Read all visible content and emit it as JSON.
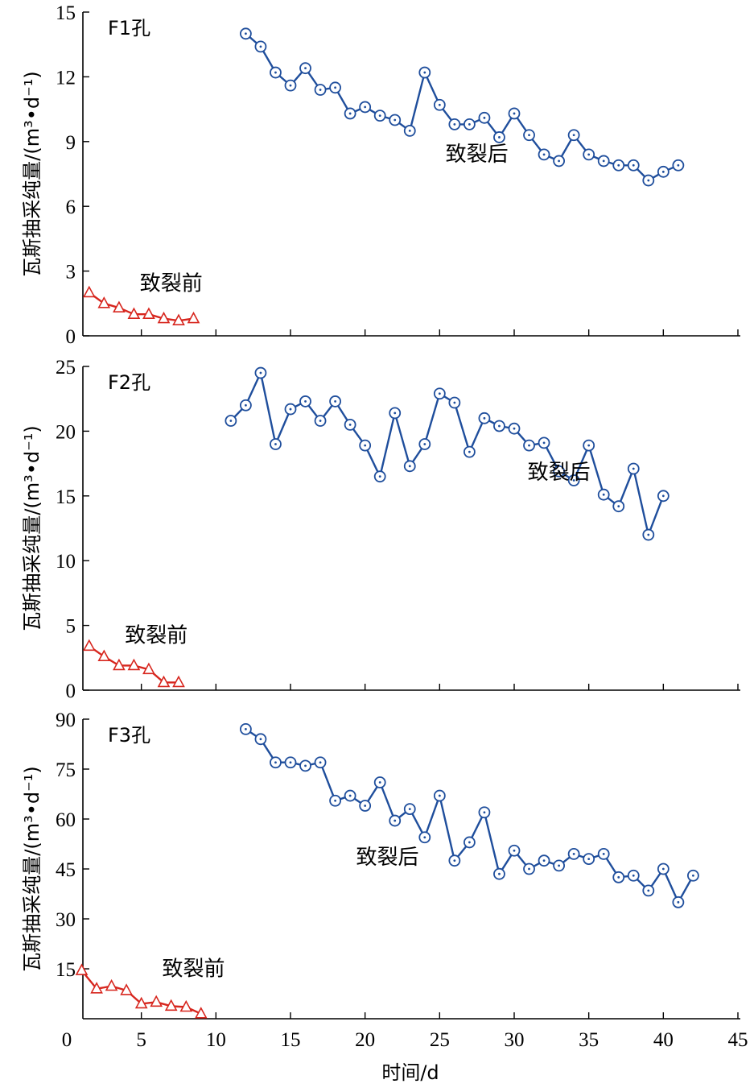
{
  "chart_data": [
    {
      "type": "line",
      "panel_label": "F1孔",
      "ylabel": "瓦斯抽采纯量/(m³•d⁻¹)",
      "ylim": [
        0,
        15
      ],
      "yticks": [
        0,
        3,
        6,
        9,
        12,
        15
      ],
      "xlim": [
        0,
        45
      ],
      "series": [
        {
          "name": "致裂前",
          "marker": "triangle",
          "color": "#d7261e",
          "x": [
            1.5,
            2.5,
            3.5,
            4.5,
            5.5,
            6.5,
            7.5,
            8.5
          ],
          "values": [
            2.0,
            1.5,
            1.3,
            1.0,
            1.0,
            0.8,
            0.7,
            0.8
          ]
        },
        {
          "name": "致裂后",
          "marker": "circle",
          "color": "#1f4e9c",
          "x": [
            12,
            13,
            14,
            15,
            16,
            17,
            18,
            19,
            20,
            21,
            22,
            23,
            24,
            25,
            26,
            27,
            28,
            29,
            30,
            31,
            32,
            33,
            34,
            35,
            36,
            37,
            38,
            39,
            40,
            41
          ],
          "values": [
            14.0,
            13.4,
            12.2,
            11.6,
            12.4,
            11.4,
            11.5,
            10.3,
            10.6,
            10.2,
            10.0,
            9.5,
            12.2,
            10.7,
            9.8,
            9.8,
            10.1,
            9.2,
            10.3,
            9.3,
            8.4,
            8.1,
            9.3,
            8.4,
            8.1,
            7.9,
            7.9,
            7.2,
            7.6,
            7.9
          ]
        }
      ],
      "annotations": [
        {
          "text": "致裂后",
          "x": 27.5,
          "y": 8.1
        },
        {
          "text": "致裂前",
          "x": 7.0,
          "y": 2.1
        }
      ]
    },
    {
      "type": "line",
      "panel_label": "F2孔",
      "ylabel": "瓦斯抽采纯量/(m³•d⁻¹)",
      "ylim": [
        0,
        25
      ],
      "yticks": [
        0,
        5,
        10,
        15,
        20,
        25
      ],
      "xlim": [
        0,
        45
      ],
      "series": [
        {
          "name": "致裂前",
          "marker": "triangle",
          "color": "#d7261e",
          "x": [
            1.5,
            2.5,
            3.5,
            4.5,
            5.5,
            6.5,
            7.5
          ],
          "values": [
            3.4,
            2.6,
            1.9,
            1.9,
            1.6,
            0.6,
            0.6
          ]
        },
        {
          "name": "致裂后",
          "marker": "circle",
          "color": "#1f4e9c",
          "x": [
            11,
            12,
            13,
            14,
            15,
            16,
            17,
            18,
            19,
            20,
            21,
            22,
            23,
            24,
            25,
            26,
            27,
            28,
            29,
            30,
            31,
            32,
            33,
            34,
            35,
            36,
            37,
            38,
            39,
            40
          ],
          "values": [
            20.8,
            22.0,
            24.5,
            19.0,
            21.7,
            22.3,
            20.8,
            22.3,
            20.5,
            18.9,
            16.5,
            21.4,
            17.3,
            19.0,
            22.9,
            22.2,
            18.4,
            21.0,
            20.4,
            20.2,
            18.9,
            19.1,
            16.9,
            16.2,
            18.9,
            15.1,
            14.2,
            17.1,
            12.0,
            15.0
          ]
        }
      ],
      "annotations": [
        {
          "text": "致裂后",
          "x": 33.0,
          "y": 16.3
        },
        {
          "text": "致裂前",
          "x": 6.0,
          "y": 3.7
        }
      ]
    },
    {
      "type": "line",
      "panel_label": "F3孔",
      "ylabel": "瓦斯抽采纯量/(m³•d⁻¹)",
      "xlabel": "时间/d",
      "ylim": [
        0,
        90
      ],
      "yticks": [
        15,
        30,
        45,
        60,
        75,
        90
      ],
      "xlim": [
        0,
        45
      ],
      "xticks": [
        0,
        5,
        10,
        15,
        20,
        25,
        30,
        35,
        40,
        45
      ],
      "series": [
        {
          "name": "致裂前",
          "marker": "triangle",
          "color": "#d7261e",
          "x": [
            1,
            2,
            3,
            4,
            5,
            6,
            7,
            8,
            9
          ],
          "values": [
            14.5,
            9.0,
            9.8,
            8.5,
            4.5,
            5.0,
            3.8,
            3.5,
            1.5
          ]
        },
        {
          "name": "致裂后",
          "marker": "circle",
          "color": "#1f4e9c",
          "x": [
            12,
            13,
            14,
            15,
            16,
            17,
            18,
            19,
            20,
            21,
            22,
            23,
            24,
            25,
            26,
            27,
            28,
            29,
            30,
            31,
            32,
            33,
            34,
            35,
            36,
            37,
            38,
            39,
            40,
            41,
            42
          ],
          "values": [
            87.0,
            84.0,
            77.0,
            77.0,
            76.0,
            77.0,
            65.5,
            67.0,
            64.0,
            71.0,
            59.5,
            63.0,
            54.5,
            67.0,
            47.5,
            53.0,
            62.0,
            43.5,
            50.5,
            45.0,
            47.5,
            46.0,
            49.5,
            48.0,
            49.5,
            42.5,
            43.0,
            38.5,
            45.0,
            35.0,
            43.0
          ]
        }
      ],
      "annotations": [
        {
          "text": "致裂后",
          "x": 21.5,
          "y": 46.5
        },
        {
          "text": "致裂前",
          "x": 8.5,
          "y": 13.0
        }
      ]
    }
  ]
}
